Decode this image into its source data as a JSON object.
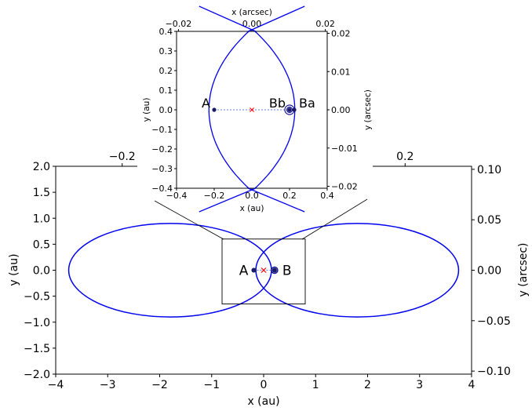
{
  "chart_data": [
    {
      "name": "main",
      "type": "line",
      "xlabel": "x (au)",
      "ylabel": "y (au)",
      "xlim": [
        -4,
        4
      ],
      "ylim": [
        -2,
        2
      ],
      "xticks": [
        "−4",
        "−3",
        "−2",
        "−1",
        "0",
        "1",
        "2",
        "3",
        "4"
      ],
      "yticks": [
        "−2.0",
        "−1.5",
        "−1.0",
        "−0.5",
        "0.0",
        "0.5",
        "1.0",
        "1.5",
        "2.0"
      ],
      "secondary_x": {
        "ticks": [
          "−0.2",
          "0.2"
        ],
        "values": [
          -0.2,
          0.2
        ]
      },
      "secondary_y": {
        "label": "y (arcsec)",
        "ticks": [
          "−0.10",
          "−0.05",
          "0.00",
          "0.05",
          "0.10"
        ],
        "values": [
          -0.1,
          -0.05,
          0.0,
          0.05,
          0.1
        ]
      },
      "orbit_color": "#0000ee",
      "series": [
        {
          "center": [
            -1.8,
            0.0
          ],
          "semi_axes": [
            1.95,
            0.9
          ]
        },
        {
          "center": [
            1.8,
            0.0
          ],
          "semi_axes": [
            1.95,
            0.9
          ]
        }
      ],
      "points": [
        {
          "label": "A",
          "x": -0.19,
          "y": 0.0
        },
        {
          "label": "B",
          "x": 0.21,
          "y": 0.0
        }
      ],
      "center_marker": {
        "x": 0.0,
        "y": 0.0,
        "color": "#ff0000"
      },
      "zoom_box": {
        "x": [
          -0.8,
          0.8
        ],
        "y": [
          -0.65,
          0.6
        ]
      }
    },
    {
      "name": "inset",
      "type": "line",
      "xlabel": "x (au)",
      "ylabel": "y (au)",
      "xlim": [
        -0.4,
        0.4
      ],
      "ylim": [
        -0.4,
        0.4
      ],
      "xticks": [
        "−0.4",
        "−0.2",
        "0.0",
        "0.2",
        "0.4"
      ],
      "yticks": [
        "−0.4",
        "−0.3",
        "−0.2",
        "−0.1",
        "0.0",
        "0.1",
        "0.2",
        "0.3",
        "0.4"
      ],
      "secondary_x": {
        "label": "x (arcsec)",
        "ticks": [
          "−0.02",
          "0.00",
          "0.02"
        ],
        "values": [
          -0.02,
          0.0,
          0.02
        ]
      },
      "secondary_y": {
        "label": "y (arcsec)",
        "ticks": [
          "−0.02",
          "−0.01",
          "0.00",
          "0.01",
          "0.02"
        ],
        "values": [
          -0.02,
          -0.01,
          0.0,
          0.01,
          0.02
        ]
      },
      "orbit_color": "#0000ee",
      "points": [
        {
          "label": "A",
          "x": -0.2,
          "y": 0.0
        },
        {
          "label": "Bb",
          "x": 0.2,
          "y": 0.0
        },
        {
          "label": "Ba",
          "x": 0.225,
          "y": 0.0
        }
      ],
      "center_marker": {
        "x": 0.0,
        "y": 0.0,
        "color": "#ff0000"
      }
    }
  ]
}
